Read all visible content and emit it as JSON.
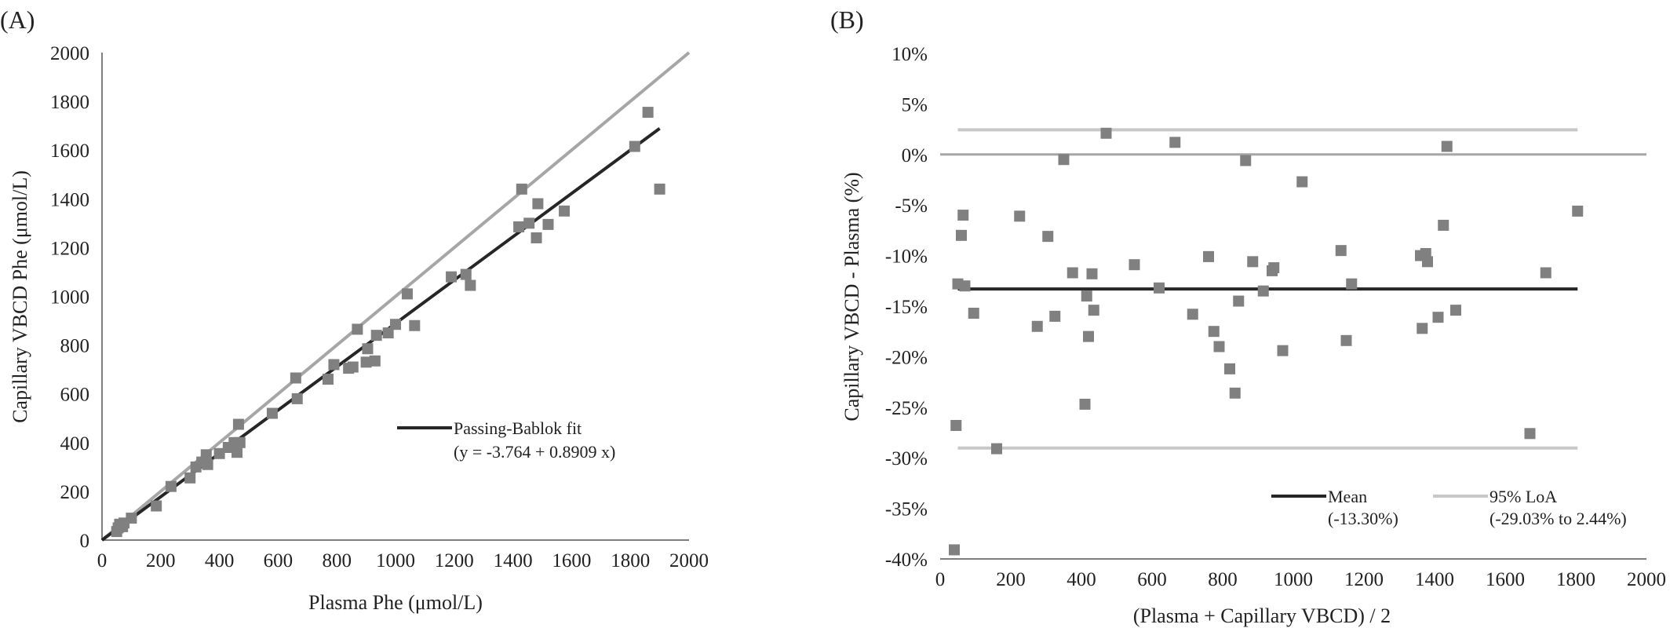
{
  "colors": {
    "points": "#808080",
    "fit_line": "#262626",
    "identity_line": "#a6a6a6",
    "loa_line": "#c8c8c8",
    "zero_line": "#a6a6a6",
    "axis": "#7f7f7f"
  },
  "chart_data": [
    {
      "panel_label": "(A)",
      "type": "scatter",
      "xlabel": "Plasma Phe (μmol/L)",
      "ylabel": "Capillary VBCD Phe (μmol/L)",
      "xlim": [
        0,
        2000
      ],
      "ylim": [
        0,
        2000
      ],
      "x_ticks": [
        "0",
        "200",
        "400",
        "600",
        "800",
        "1000",
        "1200",
        "1400",
        "1600",
        "1800",
        "2000"
      ],
      "y_ticks": [
        "0",
        "200",
        "400",
        "600",
        "800",
        "1000",
        "1200",
        "1400",
        "1600",
        "1800",
        "2000"
      ],
      "grid": false,
      "legend": {
        "placement": "center-right",
        "entries": [
          {
            "line1": "Passing-Bablok fit",
            "line2": "(y = -3.764 + 0.8909 x)"
          }
        ]
      },
      "lines": {
        "identity": {
          "x": [
            0,
            2000
          ],
          "y": [
            0,
            2000
          ]
        },
        "fit": {
          "x": [
            0,
            1900
          ],
          "y": [
            -3.764,
            1688.946
          ]
        }
      },
      "points": {
        "x": [
          50,
          55,
          60,
          70,
          75,
          100,
          185,
          235,
          300,
          320,
          340,
          355,
          360,
          400,
          430,
          450,
          460,
          465,
          470,
          580,
          660,
          665,
          770,
          790,
          840,
          855,
          870,
          900,
          905,
          930,
          935,
          975,
          1000,
          1040,
          1065,
          1190,
          1240,
          1255,
          1420,
          1430,
          1455,
          1480,
          1485,
          1520,
          1575,
          1815,
          1860,
          1900
        ],
        "y": [
          35,
          50,
          65,
          55,
          70,
          90,
          140,
          220,
          255,
          300,
          320,
          350,
          310,
          355,
          380,
          400,
          360,
          475,
          400,
          520,
          665,
          580,
          660,
          720,
          705,
          710,
          865,
          730,
          785,
          735,
          840,
          850,
          885,
          1010,
          880,
          1080,
          1090,
          1045,
          1285,
          1440,
          1300,
          1240,
          1380,
          1295,
          1350,
          1615,
          1755,
          1440
        ]
      }
    },
    {
      "panel_label": "(B)",
      "type": "scatter",
      "xlabel": "(Plasma + Capillary VBCD) / 2",
      "ylabel": "Capillary VBCD - Plasma (%)",
      "xlim": [
        0,
        2000
      ],
      "ylim": [
        -40,
        10
      ],
      "x_ticks": [
        "0",
        "200",
        "400",
        "600",
        "800",
        "1000",
        "1200",
        "1400",
        "1600",
        "1800",
        "2000"
      ],
      "y_ticks": [
        "-40%",
        "-35%",
        "-30%",
        "-25%",
        "-20%",
        "-15%",
        "-10%",
        "-5%",
        "0%",
        "5%",
        "10%"
      ],
      "grid": false,
      "legend": {
        "placement": "bottom-right",
        "entries": [
          {
            "line1": "Mean",
            "line2": "(-13.30%)"
          },
          {
            "line1": "95% LoA",
            "line2": "(-29.03% to 2.44%)"
          }
        ]
      },
      "lines": {
        "mean": {
          "x": [
            50,
            1805
          ],
          "y": [
            -13.3,
            -13.3
          ]
        },
        "upper_loa": {
          "x": [
            50,
            1805
          ],
          "y": [
            2.44,
            2.44
          ]
        },
        "lower_loa": {
          "x": [
            50,
            1805
          ],
          "y": [
            -29.03,
            -29.03
          ]
        },
        "zero": {
          "x": [
            0,
            2000
          ],
          "y": [
            0,
            0
          ]
        }
      },
      "points": {
        "x": [
          40,
          45,
          50,
          60,
          65,
          70,
          95,
          160,
          225,
          275,
          305,
          325,
          350,
          375,
          410,
          415,
          420,
          430,
          435,
          470,
          550,
          620,
          665,
          715,
          760,
          775,
          790,
          820,
          835,
          845,
          865,
          885,
          915,
          940,
          945,
          970,
          1025,
          1135,
          1150,
          1165,
          1360,
          1365,
          1375,
          1380,
          1410,
          1425,
          1435,
          1460,
          1670,
          1715,
          1805
        ],
        "y": [
          -39.1,
          -26.8,
          -12.8,
          -8.0,
          -6.0,
          -13.0,
          -15.7,
          -29.1,
          -6.1,
          -17.0,
          -8.1,
          -16.0,
          -0.5,
          -11.7,
          -24.7,
          -14.0,
          -18.0,
          -11.8,
          -15.4,
          2.1,
          -10.9,
          -13.2,
          1.2,
          -15.8,
          -10.1,
          -17.5,
          -19.0,
          -21.2,
          -23.6,
          -14.5,
          -0.6,
          -10.6,
          -13.5,
          -11.5,
          -11.2,
          -19.4,
          -2.7,
          -9.5,
          -18.4,
          -12.8,
          -10.0,
          -17.2,
          -9.8,
          -10.6,
          -16.1,
          -7.0,
          0.8,
          -15.4,
          -27.6,
          -11.7,
          -5.6
        ]
      }
    }
  ]
}
